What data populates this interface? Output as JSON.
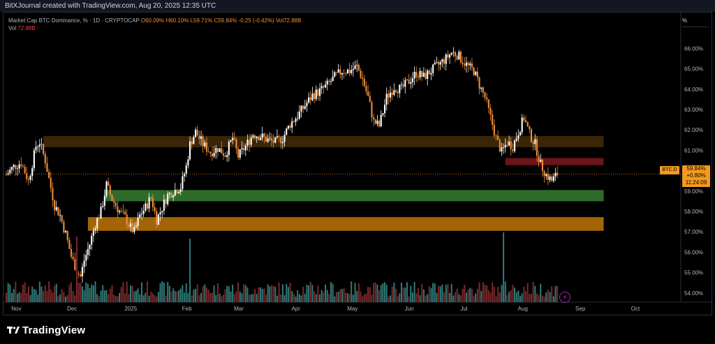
{
  "header": {
    "credit": "BitXJournal created with TradingView.com, Aug 20, 2025 12:35 UTC"
  },
  "legend": {
    "title": "Market Cap BTC Dominance, % · 1D · CRYPTOCAP",
    "open": "O60.09%",
    "high": "H60.10%",
    "low": "L59.71%",
    "close": "C59.84%",
    "change": "-0.25 (-0.42%)",
    "vol_inline": "Vol72.88B",
    "vol_label": "Vol",
    "vol_value": "72.88B"
  },
  "scale_button": "%",
  "price_tag": {
    "symbol": "BTC.D",
    "price": "59.84%",
    "change": "+0.80%",
    "countdown": "11:24:09"
  },
  "logo_text": "TradingView",
  "colors": {
    "up": "#ffffff",
    "down": "#ef8f3a",
    "vol_up": "#2f7b78",
    "vol_down": "#7a2a2a",
    "zone_brown": "#3a2507",
    "zone_red": "#6b1419",
    "zone_green": "#2e6b2b",
    "zone_orange": "#a36407",
    "accent": "#f39a1e"
  },
  "chart_data": {
    "type": "candlestick",
    "x_ticks": [
      "Nov",
      "Dec",
      "2025",
      "Feb",
      "Mar",
      "Apr",
      "May",
      "Jun",
      "Jul",
      "Aug",
      "Sep",
      "Oct"
    ],
    "y_ticks": [
      "54.00%",
      "55.00%",
      "56.00%",
      "57.00%",
      "58.00%",
      "59.00%",
      "60.00%",
      "61.00%",
      "62.00%",
      "63.00%",
      "64.00%",
      "65.00%",
      "66.00%"
    ],
    "ylim": [
      53.55,
      66.8
    ],
    "x_range_days": [
      "2024-10-27",
      "2025-10-12"
    ],
    "last_price": 59.84,
    "zones": [
      {
        "name": "resistance-brown",
        "low": 61.15,
        "high": 61.7,
        "from": "2024-11-16",
        "to": "2025-09-14",
        "color": "#3a2507"
      },
      {
        "name": "resistance-red",
        "low": 60.27,
        "high": 60.62,
        "from": "2025-07-23",
        "to": "2025-09-14",
        "color": "#6b1419"
      },
      {
        "name": "support-green",
        "low": 58.5,
        "high": 59.05,
        "from": "2024-12-19",
        "to": "2025-09-14",
        "color": "#2e6b2b"
      },
      {
        "name": "support-orange",
        "low": 57.05,
        "high": 57.72,
        "from": "2024-12-10",
        "to": "2025-09-14",
        "color": "#a36407"
      }
    ],
    "close_path": [
      [
        "2024-10-27",
        59.8
      ],
      [
        "2024-10-31",
        60.2
      ],
      [
        "2024-11-04",
        60.4
      ],
      [
        "2024-11-08",
        59.5
      ],
      [
        "2024-11-12",
        61.2
      ],
      [
        "2024-11-14",
        61.4
      ],
      [
        "2024-11-17",
        60.5
      ],
      [
        "2024-11-19",
        59.6
      ],
      [
        "2024-11-22",
        58.3
      ],
      [
        "2024-11-25",
        57.8
      ],
      [
        "2024-11-28",
        56.9
      ],
      [
        "2024-12-01",
        55.8
      ],
      [
        "2024-12-04",
        55.1
      ],
      [
        "2024-12-06",
        54.8
      ],
      [
        "2024-12-08",
        55.6
      ],
      [
        "2024-12-11",
        56.4
      ],
      [
        "2024-12-14",
        57.4
      ],
      [
        "2024-12-17",
        58.0
      ],
      [
        "2024-12-20",
        59.3
      ],
      [
        "2024-12-23",
        58.6
      ],
      [
        "2024-12-27",
        58.0
      ],
      [
        "2024-12-30",
        57.7
      ],
      [
        "2025-01-02",
        57.2
      ],
      [
        "2025-01-04",
        57.0
      ],
      [
        "2025-01-07",
        57.8
      ],
      [
        "2025-01-10",
        58.2
      ],
      [
        "2025-01-13",
        58.7
      ],
      [
        "2025-01-16",
        57.6
      ],
      [
        "2025-01-19",
        58.2
      ],
      [
        "2025-01-22",
        58.8
      ],
      [
        "2025-01-25",
        59.0
      ],
      [
        "2025-01-29",
        59.2
      ],
      [
        "2025-02-01",
        60.2
      ],
      [
        "2025-02-03",
        61.3
      ],
      [
        "2025-02-06",
        61.9
      ],
      [
        "2025-02-10",
        61.3
      ],
      [
        "2025-02-14",
        60.9
      ],
      [
        "2025-02-18",
        61.1
      ],
      [
        "2025-02-22",
        60.8
      ],
      [
        "2025-02-26",
        61.6
      ],
      [
        "2025-03-01",
        60.7
      ],
      [
        "2025-03-05",
        61.2
      ],
      [
        "2025-03-09",
        61.8
      ],
      [
        "2025-03-13",
        61.7
      ],
      [
        "2025-03-17",
        61.5
      ],
      [
        "2025-03-21",
        61.4
      ],
      [
        "2025-03-25",
        61.6
      ],
      [
        "2025-03-29",
        62.3
      ],
      [
        "2025-04-02",
        62.7
      ],
      [
        "2025-04-06",
        63.2
      ],
      [
        "2025-04-10",
        63.7
      ],
      [
        "2025-04-14",
        63.9
      ],
      [
        "2025-04-18",
        64.2
      ],
      [
        "2025-04-22",
        64.6
      ],
      [
        "2025-04-26",
        64.9
      ],
      [
        "2025-04-30",
        64.9
      ],
      [
        "2025-05-04",
        65.1
      ],
      [
        "2025-05-07",
        64.5
      ],
      [
        "2025-05-10",
        63.6
      ],
      [
        "2025-05-13",
        62.4
      ],
      [
        "2025-05-16",
        62.2
      ],
      [
        "2025-05-20",
        63.6
      ],
      [
        "2025-05-24",
        64.1
      ],
      [
        "2025-05-28",
        64.0
      ],
      [
        "2025-06-01",
        64.4
      ],
      [
        "2025-06-05",
        64.8
      ],
      [
        "2025-06-09",
        64.6
      ],
      [
        "2025-06-13",
        64.9
      ],
      [
        "2025-06-17",
        65.2
      ],
      [
        "2025-06-21",
        65.5
      ],
      [
        "2025-06-24",
        65.8
      ],
      [
        "2025-06-27",
        65.7
      ],
      [
        "2025-06-30",
        65.4
      ],
      [
        "2025-07-03",
        65.1
      ],
      [
        "2025-07-06",
        64.9
      ],
      [
        "2025-07-09",
        64.2
      ],
      [
        "2025-07-12",
        63.6
      ],
      [
        "2025-07-15",
        62.6
      ],
      [
        "2025-07-18",
        61.6
      ],
      [
        "2025-07-21",
        60.9
      ],
      [
        "2025-07-24",
        61.4
      ],
      [
        "2025-07-27",
        61.2
      ],
      [
        "2025-07-30",
        61.9
      ],
      [
        "2025-08-02",
        62.6
      ],
      [
        "2025-08-05",
        61.8
      ],
      [
        "2025-08-08",
        61.3
      ],
      [
        "2025-08-11",
        60.3
      ],
      [
        "2025-08-14",
        59.8
      ],
      [
        "2025-08-17",
        59.5
      ],
      [
        "2025-08-20",
        59.84
      ]
    ],
    "volume_spikes": [
      [
        "2024-12-04",
        0.9
      ],
      [
        "2025-07-22",
        1.0
      ],
      [
        "2025-02-03",
        0.85
      ]
    ]
  }
}
